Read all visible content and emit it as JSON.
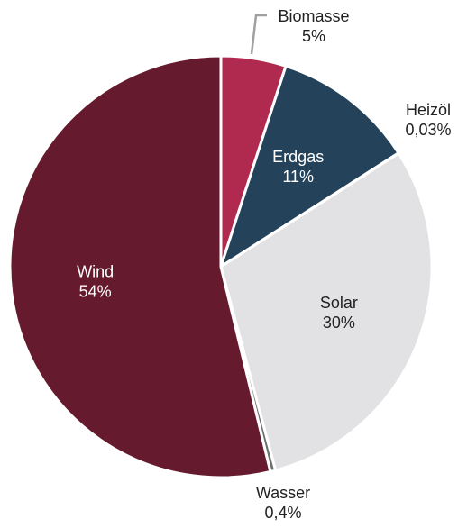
{
  "chart_data": {
    "type": "pie",
    "title": "",
    "start_angle_deg": 0,
    "direction": "clockwise",
    "slices": [
      {
        "label": "Biomasse",
        "value": 5,
        "value_label": "5%",
        "color": "#B0294F",
        "label_color": "#222222",
        "label_pos": "outside"
      },
      {
        "label": "Erdgas",
        "value": 11,
        "value_label": "11%",
        "color": "#24435A",
        "label_color": "#FFFFFF",
        "label_pos": "inside"
      },
      {
        "label": "Heizöl",
        "value": 0.03,
        "value_label": "0,03%",
        "color": "#1F1F1F",
        "label_color": "#222222",
        "label_pos": "outside"
      },
      {
        "label": "Solar",
        "value": 30,
        "value_label": "30%",
        "color": "#E2E2E4",
        "label_color": "#222222",
        "label_pos": "inside"
      },
      {
        "label": "Wasser",
        "value": 0.4,
        "value_label": "0,4%",
        "color": "#6E6E6E",
        "label_color": "#222222",
        "label_pos": "outside"
      },
      {
        "label": "Wind",
        "value": 54,
        "value_label": "54%",
        "color": "#661A2E",
        "label_color": "#FFFFFF",
        "label_pos": "inside"
      }
    ],
    "legend": "none",
    "leader_line_color": "#A0A0A0"
  }
}
